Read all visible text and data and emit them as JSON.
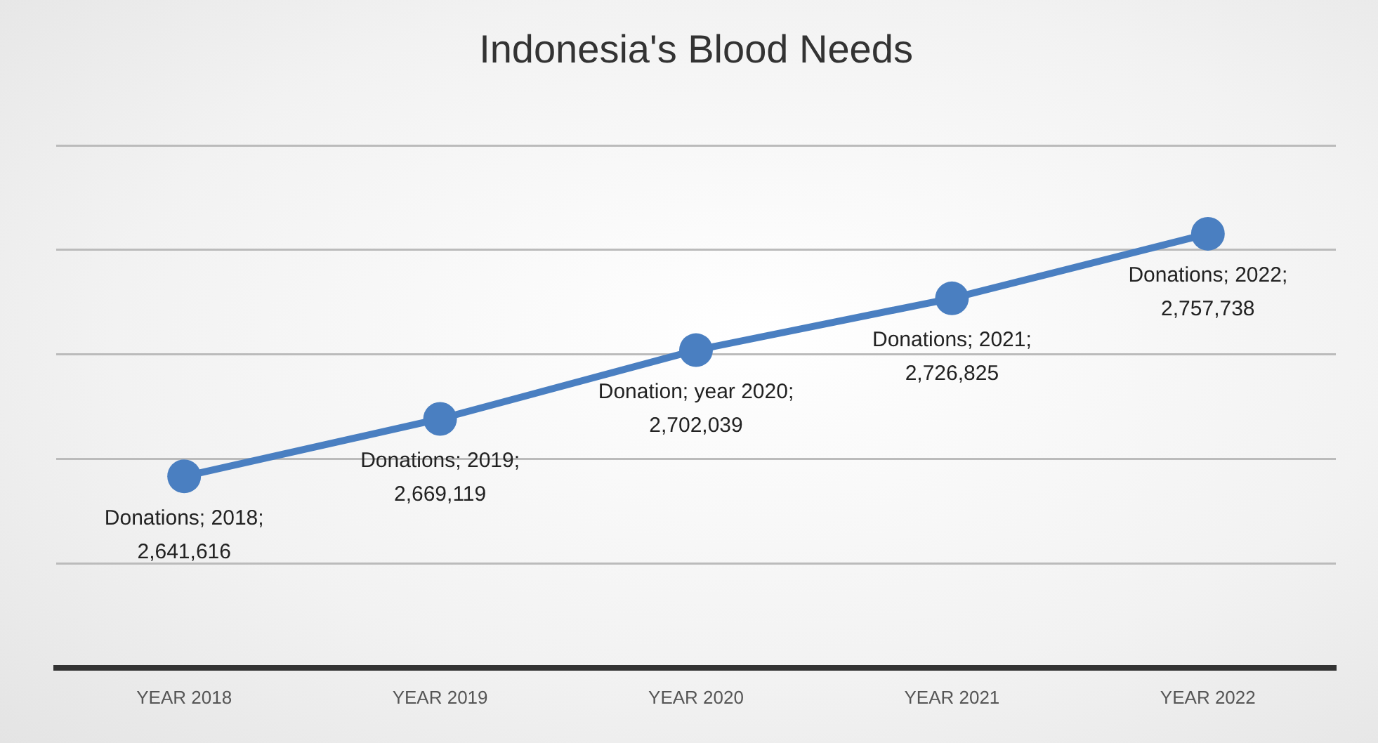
{
  "chart_data": {
    "type": "line",
    "title": "Indonesia's Blood Needs",
    "categories": [
      "YEAR 2018",
      "YEAR 2019",
      "YEAR 2020",
      "YEAR 2021",
      "YEAR 2022"
    ],
    "values": [
      2641616,
      2669119,
      2702039,
      2726825,
      2757738
    ],
    "value_labels": [
      "Donations; 2018; 2,641,616",
      "Donations; 2019; 2,669,119",
      "Donation; year 2020; 2,702,039",
      "Donations; 2021; 2,726,825",
      "Donations; 2022; 2,757,738"
    ],
    "color": "#4a7fc1",
    "marker": "circle",
    "line_style": "solid",
    "ylim": [
      2550000,
      2800000
    ],
    "yticks": [
      {
        "value": 2600000,
        "label": null
      },
      {
        "value": 2650000,
        "label": null
      },
      {
        "value": 2700000,
        "label": null
      },
      {
        "value": 2750000,
        "label": null
      },
      {
        "value": 2800000,
        "label": null
      }
    ],
    "grid": "y",
    "tick_labels": "x",
    "legend": false
  }
}
